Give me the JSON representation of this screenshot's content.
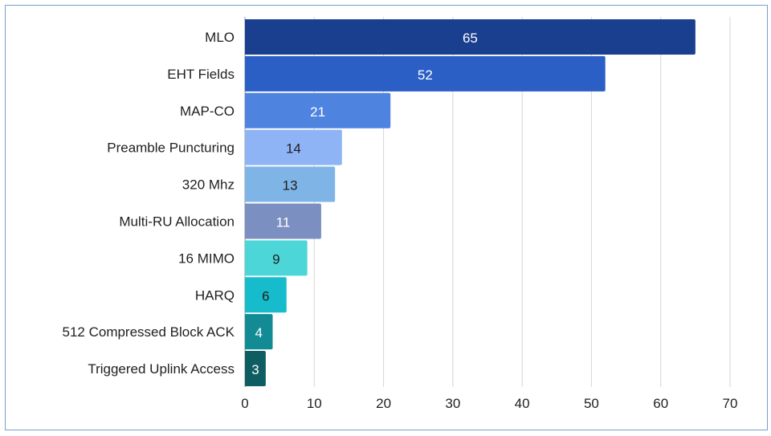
{
  "chart_data": {
    "type": "bar",
    "orientation": "horizontal",
    "title": "",
    "xlabel": "",
    "ylabel": "",
    "categories": [
      "MLO",
      "EHT Fields",
      "MAP-CO",
      "Preamble Puncturing",
      "320 Mhz",
      "Multi-RU Allocation",
      "16 MIMO",
      "HARQ",
      "512 Compressed Block ACK",
      "Triggered Uplink Access"
    ],
    "values": [
      65,
      52,
      21,
      14,
      13,
      11,
      9,
      6,
      4,
      3
    ],
    "data_labels": [
      "65",
      "52",
      "21",
      "14",
      "13",
      "11",
      "9",
      "6",
      "4",
      "3"
    ],
    "bar_colors": [
      "#1a3f8f",
      "#2b5fc6",
      "#4f83e0",
      "#8fb4f5",
      "#7eb5e6",
      "#7b8fc0",
      "#4cd6d8",
      "#16bccb",
      "#138b94",
      "#0e5d63"
    ],
    "label_colors": [
      "#ffffff",
      "#ffffff",
      "#ffffff",
      "#1f1f1f",
      "#1f1f1f",
      "#ffffff",
      "#1f1f1f",
      "#1f1f1f",
      "#ffffff",
      "#ffffff"
    ],
    "xlim": [
      0,
      70
    ],
    "xticks": [
      0,
      10,
      20,
      30,
      40,
      50,
      60,
      70
    ],
    "grid": true,
    "legend": "none"
  }
}
